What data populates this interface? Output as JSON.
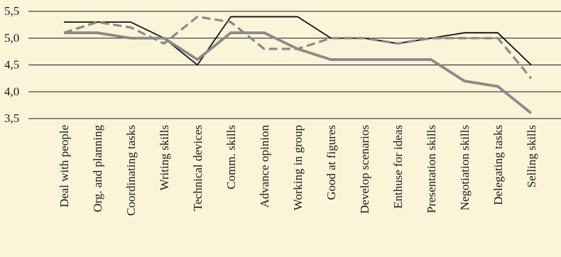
{
  "chart_data": {
    "type": "line",
    "title": "",
    "xlabel": "",
    "ylabel": "",
    "ylim": [
      3.5,
      5.5
    ],
    "yticks": [
      3.5,
      4.0,
      4.5,
      5.0,
      5.5
    ],
    "ytick_labels": [
      "3,5",
      "4,0",
      "4,5",
      "5,0",
      "5,5"
    ],
    "grid": "horizontal",
    "legend": "none",
    "categories": [
      "Deal with people",
      "Org. and planning",
      "Coordinating tasks",
      "Writing skills",
      "Technical devices",
      "Comm. skills",
      "Advance opinion",
      "Working in group",
      "Good at figures",
      "Develop scenarios",
      "Enthuse for ideas",
      "Presentation skills",
      "Negotiation skills",
      "Delegating tasks",
      "Selling skills"
    ],
    "series": [
      {
        "style": "thin-black",
        "color": "#111111",
        "values": [
          5.3,
          5.3,
          5.3,
          5.0,
          4.5,
          5.4,
          5.4,
          5.4,
          5.0,
          5.0,
          4.9,
          5.0,
          5.1,
          5.1,
          4.5
        ]
      },
      {
        "style": "dashed-gray",
        "color": "#8a8a8a",
        "values": [
          5.1,
          5.3,
          5.2,
          4.9,
          5.4,
          5.3,
          4.8,
          4.8,
          5.0,
          5.0,
          4.9,
          5.0,
          5.0,
          5.0,
          4.25
        ]
      },
      {
        "style": "thick-gray",
        "color": "#8a8a8a",
        "values": [
          5.1,
          5.1,
          5.0,
          5.0,
          4.6,
          5.1,
          5.1,
          4.8,
          4.6,
          4.6,
          4.6,
          4.6,
          4.2,
          4.1,
          3.6
        ]
      }
    ]
  }
}
